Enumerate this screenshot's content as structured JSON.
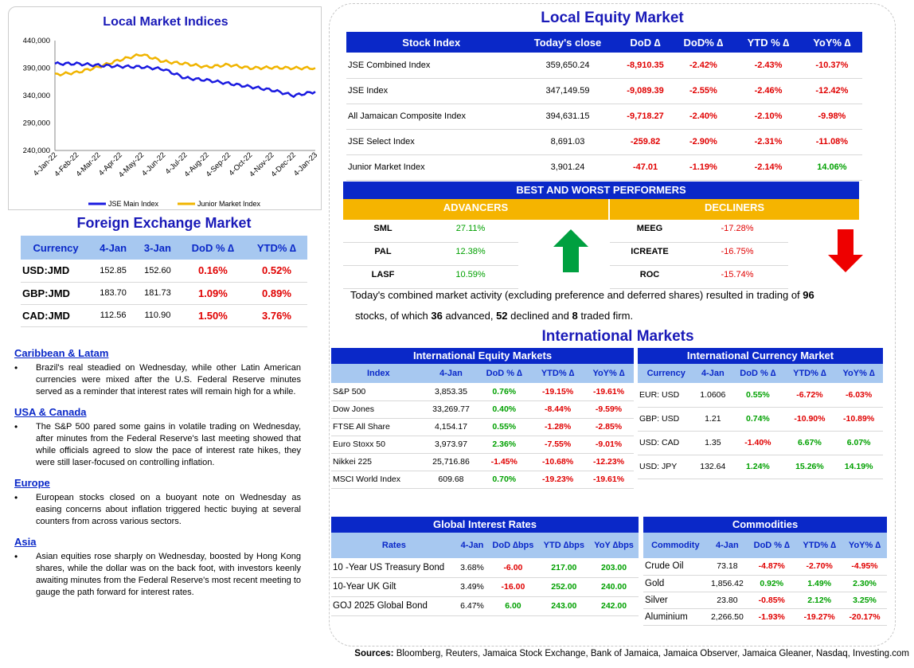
{
  "local_indices": {
    "title": "Local Market Indices",
    "y_ticks": [
      "440,000",
      "390,000",
      "340,000",
      "290,000",
      "240,000"
    ],
    "x_ticks": [
      "4-Jan-22",
      "4-Feb-22",
      "4-Mar-22",
      "4-Apr-22",
      "4-May-22",
      "4-Jun-22",
      "4-Jul-22",
      "4-Aug-22",
      "4-Sep-22",
      "4-Oct-22",
      "4-Nov-22",
      "4-Dec-22",
      "4-Jan-23"
    ],
    "legend": [
      "JSE Main Index",
      "Junior Market Index"
    ],
    "colors": {
      "main": "#1a1ae0",
      "junior": "#f0b400"
    }
  },
  "chart_data": {
    "type": "line",
    "title": "Local Market Indices",
    "ylim": [
      240000,
      440000
    ],
    "x": [
      "4-Jan-22",
      "4-Feb-22",
      "4-Mar-22",
      "4-Apr-22",
      "4-May-22",
      "4-Jun-22",
      "4-Jul-22",
      "4-Aug-22",
      "4-Sep-22",
      "4-Oct-22",
      "4-Nov-22",
      "4-Dec-22",
      "4-Jan-23"
    ],
    "series": [
      {
        "name": "JSE Main Index",
        "values": [
          398000,
          398000,
          395000,
          393000,
          392000,
          388000,
          372000,
          368000,
          362000,
          356000,
          350000,
          340000,
          347000
        ]
      },
      {
        "name": "Junior Market Index",
        "values": [
          378000,
          382000,
          392000,
          405000,
          415000,
          402000,
          398000,
          392000,
          396000,
          390000,
          391000,
          390000,
          390000
        ]
      }
    ]
  },
  "fx": {
    "title": "Foreign Exchange Market",
    "headers": [
      "Currency",
      "4-Jan",
      "3-Jan",
      "DoD % ∆",
      "YTD% ∆"
    ],
    "rows": [
      [
        "USD:JMD",
        "152.85",
        "152.60",
        "0.16%",
        "0.52%"
      ],
      [
        "GBP:JMD",
        "183.70",
        "181.73",
        "1.09%",
        "0.89%"
      ],
      [
        "CAD:JMD",
        "112.56",
        "110.90",
        "1.50%",
        "3.76%"
      ]
    ]
  },
  "news": [
    {
      "head": "Caribbean & Latam",
      "body": "Brazil's real steadied on Wednesday, while other Latin American currencies were mixed after the U.S. Federal Reserve minutes served as a reminder that interest rates will remain high for a while."
    },
    {
      "head": "USA & Canada",
      "body": "The S&P 500 pared some gains in volatile trading on Wednesday, after minutes from the Federal Reserve's last meeting showed that while officials agreed to slow the pace of interest rate hikes, they were still laser-focused on controlling inflation."
    },
    {
      "head": "Europe",
      "body": "European stocks closed on a buoyant note on Wednesday as easing concerns about inflation triggered hectic buying at several counters from across various sectors."
    },
    {
      "head": "Asia",
      "body": "Asian equities rose sharply on Wednesday, boosted by Hong Kong shares, while the dollar was on the back foot, with investors keenly awaiting minutes from the Federal Reserve's most recent meeting to gauge the path forward for interest rates."
    }
  ],
  "local_equity": {
    "title": "Local Equity Market",
    "headers": [
      "Stock Index",
      "Today's close",
      "DoD  ∆",
      "DoD% ∆",
      "YTD % ∆",
      "YoY% ∆"
    ],
    "rows": [
      [
        "JSE Combined Index",
        "359,650.24",
        "-8,910.35",
        "-2.42%",
        "-2.43%",
        "-10.37%"
      ],
      [
        "JSE Index",
        "347,149.59",
        "-9,089.39",
        "-2.55%",
        "-2.46%",
        "-12.42%"
      ],
      [
        "All Jamaican Composite Index",
        "394,631.15",
        "-9,718.27",
        "-2.40%",
        "-2.10%",
        "-9.98%"
      ],
      [
        "JSE Select Index",
        "8,691.03",
        "-259.82",
        "-2.90%",
        "-2.31%",
        "-11.08%"
      ],
      [
        "Junior Market Index",
        "3,901.24",
        "-47.01",
        "-1.19%",
        "-2.14%",
        "14.06%"
      ]
    ]
  },
  "performers": {
    "title": "BEST AND WORST PERFORMERS",
    "advancers_label": "ADVANCERS",
    "decliners_label": "DECLINERS",
    "advancers": [
      [
        "SML",
        "27.11%"
      ],
      [
        "PAL",
        "12.38%"
      ],
      [
        "LASF",
        "10.59%"
      ]
    ],
    "decliners": [
      [
        "MEEG",
        "-17.28%"
      ],
      [
        "ICREATE",
        "-16.75%"
      ],
      [
        "ROC",
        "-15.74%"
      ]
    ]
  },
  "summary": {
    "part1": "Today's combined market activity (excluding preference and deferred shares) resulted in trading of ",
    "traded": "96",
    "part2": "stocks, of which ",
    "advanced": "36",
    "part3": " advanced, ",
    "declined": "52",
    "part4": " declined and ",
    "firm": "8",
    "part5": " traded firm."
  },
  "intl_title": "International Markets",
  "intl_equity": {
    "title": "International Equity Markets",
    "headers": [
      "Index",
      "4-Jan",
      "DoD % ∆",
      "YTD% ∆",
      "YoY% ∆"
    ],
    "rows": [
      [
        "S&P 500",
        "3,853.35",
        "0.76%",
        "-19.15%",
        "-19.61%"
      ],
      [
        "Dow Jones",
        "33,269.77",
        "0.40%",
        "-8.44%",
        "-9.59%"
      ],
      [
        "FTSE All Share",
        "4,154.17",
        "0.55%",
        "-1.28%",
        "-2.85%"
      ],
      [
        "Euro Stoxx 50",
        "3,973.97",
        "2.36%",
        "-7.55%",
        "-9.01%"
      ],
      [
        "Nikkei 225",
        "25,716.86",
        "-1.45%",
        "-10.68%",
        "-12.23%"
      ],
      [
        "MSCI World Index",
        "609.68",
        "0.70%",
        "-19.23%",
        "-19.61%"
      ]
    ]
  },
  "intl_currency": {
    "title": "International Currency Market",
    "headers": [
      "Currency",
      "4-Jan",
      "DoD % ∆",
      "YTD% ∆",
      "YoY% ∆"
    ],
    "rows": [
      [
        "EUR: USD",
        "1.0606",
        "0.55%",
        "-6.72%",
        "-6.03%"
      ],
      [
        "GBP: USD",
        "1.21",
        "0.74%",
        "-10.90%",
        "-10.89%"
      ],
      [
        "USD: CAD",
        "1.35",
        "-1.40%",
        "6.67%",
        "6.07%"
      ],
      [
        "USD: JPY",
        "132.64",
        "1.24%",
        "15.26%",
        "14.19%"
      ]
    ]
  },
  "rates": {
    "title": "Global Interest Rates",
    "headers": [
      "Rates",
      "4-Jan",
      "DoD ∆bps",
      "YTD ∆bps",
      "YoY ∆bps"
    ],
    "rows": [
      [
        "10 -Year US Treasury Bond",
        "3.68%",
        "-6.00",
        "217.00",
        "203.00"
      ],
      [
        "10-Year UK Gilt",
        "3.49%",
        "-16.00",
        "252.00",
        "240.00"
      ],
      [
        "GOJ 2025 Global Bond",
        "6.47%",
        "6.00",
        "243.00",
        "242.00"
      ]
    ]
  },
  "commodities": {
    "title": "Commodities",
    "headers": [
      "Commodity",
      "4-Jan",
      "DoD % ∆",
      "YTD% ∆",
      "YoY% ∆"
    ],
    "rows": [
      [
        "Crude Oil",
        "73.18",
        "-4.87%",
        "-2.70%",
        "-4.95%"
      ],
      [
        "Gold",
        "1,856.42",
        "0.92%",
        "1.49%",
        "2.30%"
      ],
      [
        "Silver",
        "23.80",
        "-0.85%",
        "2.12%",
        "3.25%"
      ],
      [
        "Aluminium",
        "2,266.50",
        "-1.93%",
        "-19.27%",
        "-20.17%"
      ]
    ]
  },
  "sources": {
    "label": "Sources:",
    "text": " Bloomberg, Reuters, Jamaica Stock Exchange, Bank of Jamaica, Jamaica Observer, Jamaica Gleaner, Nasdaq, Investing.com"
  }
}
